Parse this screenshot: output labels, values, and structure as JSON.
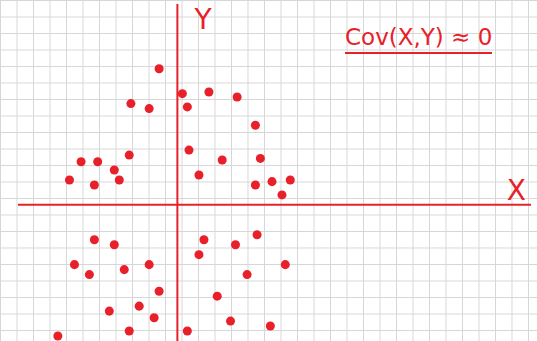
{
  "chart_data": {
    "type": "scatter",
    "x_label": "X",
    "y_label": "Y",
    "annotations": [
      {
        "text": "Cov(X,Y) ≈ 0"
      }
    ],
    "x": [
      -1.1,
      0.3,
      -2.8,
      -1.7,
      0.6,
      1.9,
      3.6,
      4.7,
      5.0,
      2.7,
      0.7,
      -2.9,
      -3.8,
      -4.8,
      -5.8,
      -3.5,
      -5.0,
      -6.5,
      1.3,
      4.7,
      5.7,
      6.8,
      6.3,
      -5.0,
      -3.8,
      -6.2,
      -5.3,
      -3.2,
      -1.7,
      -1.1,
      -2.3,
      -1.4,
      0.6,
      2.4,
      3.2,
      4.2,
      4.8,
      6.5,
      1.6,
      1.3,
      5.6,
      -4.1,
      -7.2,
      -2.9,
      3.5
    ],
    "values": [
      8.2,
      6.7,
      6.1,
      5.8,
      5.9,
      6.8,
      6.5,
      4.8,
      2.8,
      2.7,
      3.3,
      3.0,
      2.1,
      2.6,
      2.6,
      1.5,
      1.2,
      1.5,
      1.8,
      1.2,
      1.4,
      1.5,
      0.6,
      -2.1,
      -2.4,
      -3.6,
      -4.2,
      -3.9,
      -3.6,
      -5.2,
      -6.1,
      -6.8,
      -7.6,
      -5.5,
      -7.0,
      -4.2,
      -1.8,
      -3.6,
      -2.1,
      -3.0,
      -7.3,
      -6.4,
      -7.9,
      -7.6,
      -2.4
    ],
    "xlim": [
      -9.6,
      21.3
    ],
    "ylim": [
      -8.2,
      12.1
    ],
    "tick_labels": false,
    "color": "#e8202a",
    "marker": "circle"
  }
}
